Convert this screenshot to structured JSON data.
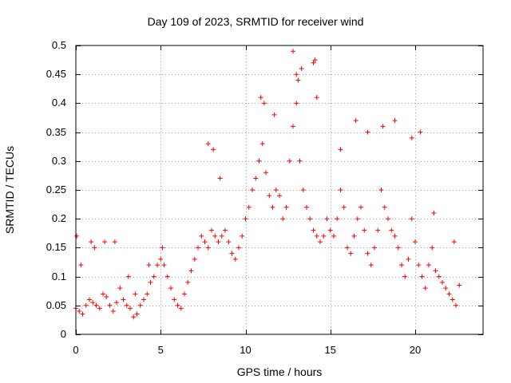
{
  "chart_data": {
    "type": "scatter",
    "title": "Day 109 of 2023, SRMTID for receiver wind",
    "xlabel": "GPS time / hours",
    "ylabel": "SRMTID / TECUs",
    "xlim": [
      0,
      24
    ],
    "ylim": [
      0,
      0.5
    ],
    "grid": true,
    "marker": "+",
    "color": "#ff0000",
    "xticks": [
      0,
      5,
      10,
      15,
      20
    ],
    "xtick_labels": [
      "0",
      "5",
      "10",
      "15",
      "20"
    ],
    "yticks": [
      0,
      0.05,
      0.1,
      0.15,
      0.2,
      0.25,
      0.3,
      0.35,
      0.4,
      0.45,
      0.5
    ],
    "ytick_labels": [
      "0",
      "0.05",
      "0.1",
      "0.15",
      "0.2",
      "0.25",
      "0.3",
      "0.35",
      "0.4",
      "0.45",
      "0.5"
    ],
    "series": [
      {
        "name": "SRMTID",
        "x": [
          0.0,
          0.2,
          0.4,
          0.6,
          0.8,
          1.0,
          1.2,
          1.4,
          1.6,
          1.8,
          2.0,
          2.2,
          2.4,
          2.6,
          2.8,
          3.0,
          3.2,
          3.4,
          3.6,
          3.8,
          4.0,
          4.2,
          4.4,
          4.6,
          4.8,
          5.0,
          5.2,
          5.4,
          5.6,
          5.8,
          6.0,
          6.2,
          6.4,
          6.6,
          6.8,
          7.0,
          7.2,
          7.4,
          7.6,
          7.8,
          8.0,
          8.2,
          8.4,
          8.6,
          8.8,
          9.0,
          9.2,
          9.4,
          9.6,
          9.8,
          10.0,
          10.2,
          10.4,
          10.6,
          10.8,
          11.0,
          11.2,
          11.4,
          11.6,
          11.8,
          12.0,
          12.2,
          12.4,
          12.6,
          12.8,
          13.0,
          13.2,
          13.4,
          13.6,
          13.8,
          14.0,
          14.2,
          14.4,
          14.6,
          14.8,
          15.0,
          15.2,
          15.4,
          15.6,
          15.8,
          16.0,
          16.2,
          16.4,
          16.6,
          16.8,
          17.0,
          17.2,
          17.4,
          17.6,
          17.8,
          18.0,
          18.2,
          18.4,
          18.6,
          18.8,
          19.0,
          19.2,
          19.4,
          19.6,
          19.8,
          20.0,
          20.2,
          20.4,
          20.6,
          20.8,
          21.0,
          21.2,
          21.4,
          21.6,
          21.8,
          22.0,
          22.2,
          22.4,
          22.6,
          0.05,
          0.3,
          0.9,
          1.1,
          1.7,
          2.3,
          3.1,
          3.5,
          4.3,
          5.1,
          7.8,
          8.1,
          8.5,
          10.9,
          11.1,
          11.7,
          12.8,
          13.0,
          13.1,
          13.3,
          14.0,
          14.1,
          14.2,
          15.6,
          16.5,
          17.2,
          18.1,
          18.8,
          19.8,
          20.3,
          21.1,
          22.3
        ],
        "y": [
          0.045,
          0.04,
          0.035,
          0.05,
          0.06,
          0.055,
          0.05,
          0.045,
          0.07,
          0.065,
          0.05,
          0.04,
          0.055,
          0.08,
          0.06,
          0.05,
          0.045,
          0.03,
          0.035,
          0.05,
          0.06,
          0.07,
          0.09,
          0.1,
          0.12,
          0.13,
          0.12,
          0.1,
          0.08,
          0.06,
          0.05,
          0.045,
          0.07,
          0.09,
          0.11,
          0.13,
          0.15,
          0.17,
          0.16,
          0.15,
          0.18,
          0.17,
          0.16,
          0.17,
          0.18,
          0.16,
          0.14,
          0.13,
          0.15,
          0.17,
          0.2,
          0.22,
          0.25,
          0.27,
          0.3,
          0.33,
          0.28,
          0.24,
          0.22,
          0.25,
          0.24,
          0.2,
          0.22,
          0.3,
          0.36,
          0.4,
          0.3,
          0.25,
          0.22,
          0.2,
          0.18,
          0.17,
          0.16,
          0.17,
          0.2,
          0.18,
          0.17,
          0.2,
          0.25,
          0.22,
          0.15,
          0.14,
          0.17,
          0.2,
          0.22,
          0.18,
          0.14,
          0.12,
          0.15,
          0.18,
          0.25,
          0.22,
          0.2,
          0.18,
          0.17,
          0.15,
          0.12,
          0.1,
          0.13,
          0.2,
          0.16,
          0.12,
          0.1,
          0.08,
          0.12,
          0.15,
          0.11,
          0.1,
          0.09,
          0.08,
          0.07,
          0.06,
          0.05,
          0.085,
          0.17,
          0.12,
          0.16,
          0.15,
          0.16,
          0.16,
          0.1,
          0.07,
          0.12,
          0.15,
          0.33,
          0.32,
          0.27,
          0.41,
          0.4,
          0.38,
          0.49,
          0.45,
          0.44,
          0.46,
          0.47,
          0.475,
          0.41,
          0.32,
          0.37,
          0.35,
          0.36,
          0.37,
          0.34,
          0.35,
          0.21,
          0.16
        ]
      }
    ]
  }
}
